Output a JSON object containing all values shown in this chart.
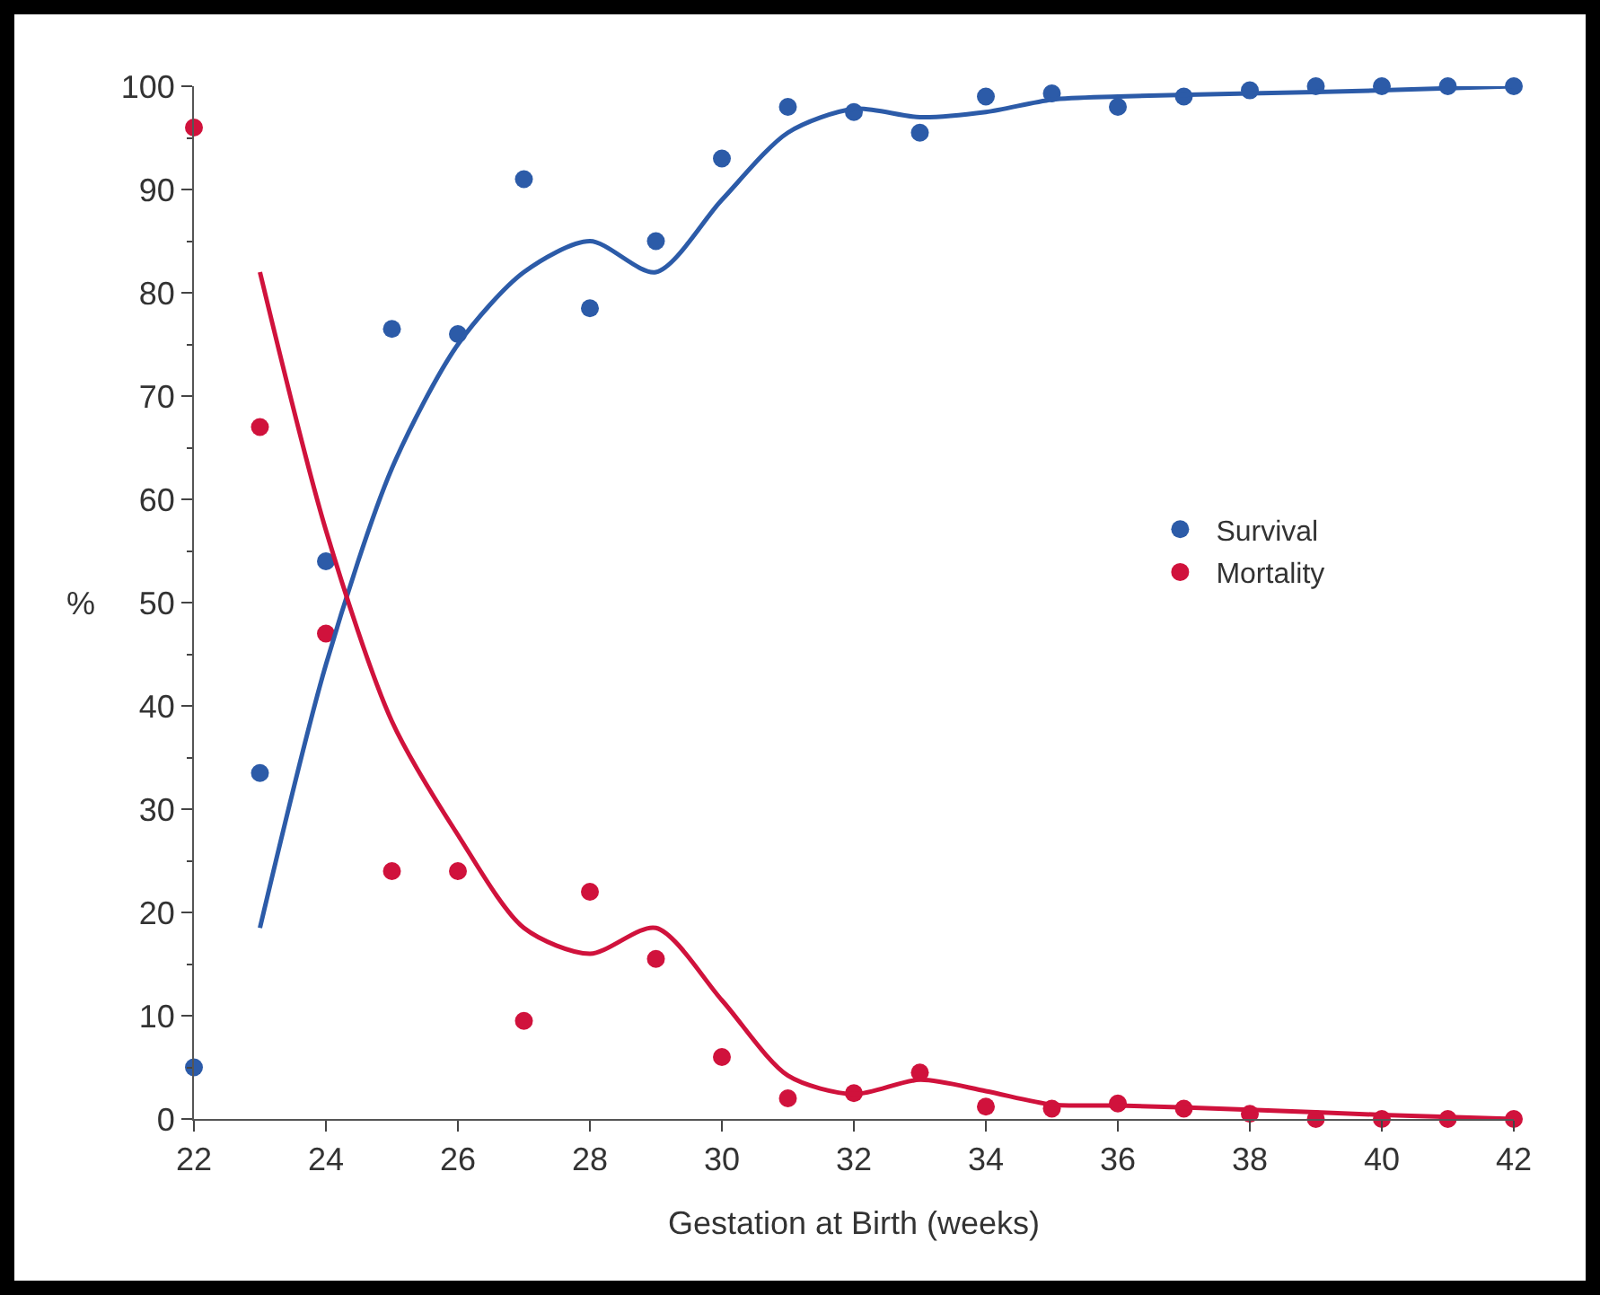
{
  "chart_data": {
    "type": "scatter",
    "xlabel": "Gestation at Birth (weeks)",
    "ylabel": "%",
    "x": [
      22,
      23,
      24,
      25,
      26,
      27,
      28,
      29,
      30,
      31,
      32,
      33,
      34,
      35,
      36,
      37,
      38,
      39,
      40,
      41,
      42
    ],
    "xlim": [
      22,
      42
    ],
    "xticks": [
      22,
      24,
      26,
      28,
      30,
      32,
      34,
      36,
      38,
      40,
      42
    ],
    "ylim": [
      0,
      100
    ],
    "yticks": [
      0,
      10,
      20,
      30,
      40,
      50,
      60,
      70,
      80,
      90,
      100
    ],
    "grid": false,
    "legend": "right",
    "series": [
      {
        "name": "Survival",
        "color": "#2c5ba8",
        "marker": "circle",
        "values": [
          5,
          33.5,
          54,
          76.5,
          76,
          91,
          78.5,
          85,
          93,
          98,
          97.5,
          95.5,
          99,
          99.3,
          98,
          99,
          99.6,
          100,
          100,
          100,
          100
        ]
      },
      {
        "name": "Mortality",
        "color": "#d0123c",
        "marker": "circle",
        "values": [
          96,
          67,
          47,
          24,
          24,
          9.5,
          22,
          15.5,
          6,
          2,
          2.5,
          4.5,
          1.2,
          1,
          1.5,
          1,
          0.5,
          0,
          0,
          0,
          0
        ]
      },
      {
        "type": "line",
        "color": "#2c5ba8",
        "marker": "none",
        "x": [
          23,
          24,
          25,
          26,
          27,
          28,
          29,
          30,
          31,
          32,
          33,
          34,
          35,
          36,
          38,
          40,
          42
        ],
        "values": [
          18.5,
          44,
          63,
          75,
          82,
          85,
          82,
          89,
          95.5,
          97.8,
          97,
          97.5,
          98.7,
          99,
          99.3,
          99.6,
          100
        ]
      },
      {
        "type": "line",
        "color": "#d0123c",
        "marker": "none",
        "x": [
          23,
          24,
          25,
          26,
          27,
          28,
          29,
          30,
          31,
          32,
          33,
          34,
          35,
          36,
          38,
          40,
          42
        ],
        "values": [
          82,
          57,
          38.5,
          27.5,
          18.5,
          16,
          18.5,
          11.5,
          4.2,
          2.4,
          3.8,
          2.7,
          1.4,
          1.3,
          0.9,
          0.4,
          0
        ]
      }
    ]
  }
}
